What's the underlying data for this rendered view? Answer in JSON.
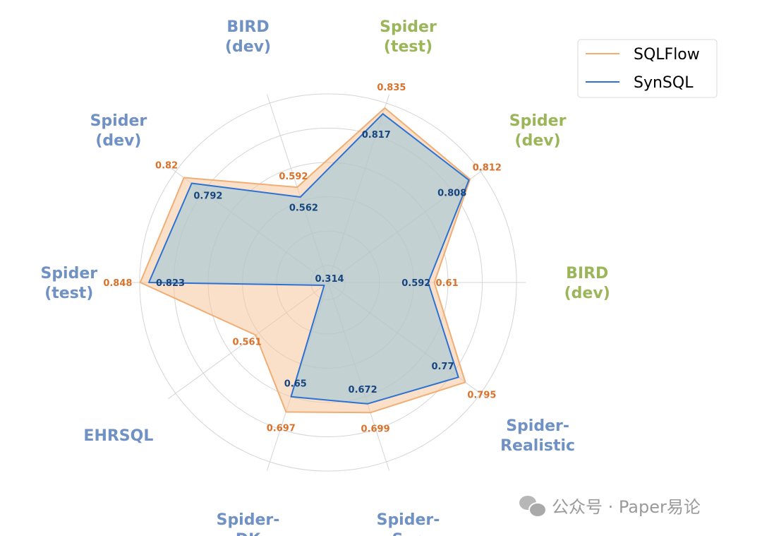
{
  "chart_data": {
    "type": "radar",
    "axes": [
      {
        "label_lines": [
          "BIRD",
          "(dev)"
        ],
        "color": "#9bb559"
      },
      {
        "label_lines": [
          "Spider-",
          "Realistic"
        ],
        "color": "#6f91c4"
      },
      {
        "label_lines": [
          "Spider-",
          "Syn"
        ],
        "color": "#6f91c4"
      },
      {
        "label_lines": [
          "Spider-",
          "DK"
        ],
        "color": "#6f91c4"
      },
      {
        "label_lines": [
          "EHRSQL"
        ],
        "color": "#6f91c4"
      },
      {
        "label_lines": [
          "Spider",
          "(test)"
        ],
        "color": "#6f91c4"
      },
      {
        "label_lines": [
          "Spider",
          "(dev)"
        ],
        "color": "#6f91c4"
      },
      {
        "label_lines": [
          "BIRD",
          "(dev)"
        ],
        "color": "#6f91c4"
      },
      {
        "label_lines": [
          "Spider",
          "(test)"
        ],
        "color": "#9bb559"
      },
      {
        "label_lines": [
          "Spider",
          "(dev)"
        ],
        "color": "#9bb559"
      }
    ],
    "series": [
      {
        "name": "SQLFlow",
        "values": [
          0.61,
          0.795,
          0.699,
          0.697,
          0.561,
          0.848,
          0.82,
          0.592,
          0.835,
          0.812
        ],
        "labels": [
          "0.61",
          "0.795",
          "0.699",
          "0.697",
          "0.561",
          "0.848",
          "0.82",
          "0.592",
          "0.835",
          "0.812"
        ],
        "line_color": "#f0ae74",
        "fill_color": "#f5c69c",
        "label_color": "#d9722b"
      },
      {
        "name": "SynSQL",
        "values": [
          0.592,
          0.77,
          0.672,
          0.65,
          0.314,
          0.823,
          0.792,
          0.562,
          0.817,
          0.808
        ],
        "labels": [
          "0.592",
          "0.77",
          "0.672",
          "0.65",
          "0.314",
          "0.823",
          "0.792",
          "0.562",
          "0.817",
          "0.808"
        ],
        "line_color": "#2d72d2",
        "fill_color": "#9fc6d8",
        "label_color": "#17457f"
      }
    ],
    "rlim": [
      0.3,
      0.86
    ],
    "grid": true,
    "legend_position": "top-right"
  },
  "legend": [
    {
      "label": "SQLFlow",
      "color": "#f0ae74"
    },
    {
      "label": "SynSQL",
      "color": "#2d72d2"
    }
  ],
  "watermark": {
    "text": "公众号 · Paper易论",
    "icon": "wechat-icon"
  }
}
